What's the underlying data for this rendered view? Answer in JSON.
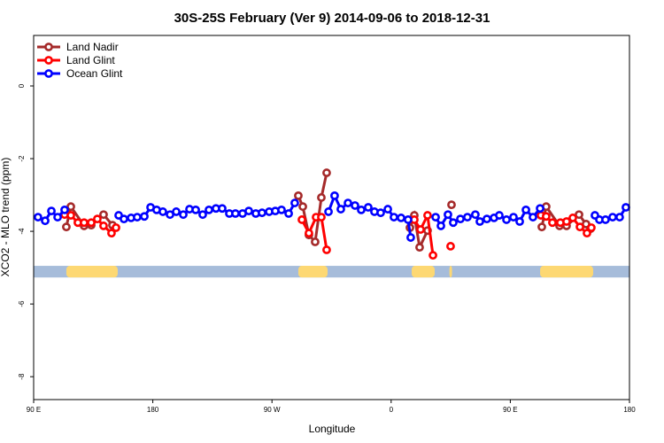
{
  "chart_data": {
    "type": "line",
    "title": "30S-25S February (Ver 9)   2014-09-06 to 2018-12-31",
    "xlabel": "Longitude",
    "ylabel": "XCO2 - MLO trend (ppm)",
    "xlim": [
      90,
      540
    ],
    "ylim": [
      -8.63,
      1.39
    ],
    "grid": false,
    "legend_position": "top-left",
    "x_ticks": [
      {
        "value": 90,
        "label": "90 E"
      },
      {
        "value": 180,
        "label": "180"
      },
      {
        "value": 270,
        "label": "90 W"
      },
      {
        "value": 360,
        "label": "0"
      },
      {
        "value": 450,
        "label": "90 E"
      },
      {
        "value": 540,
        "label": "180"
      }
    ],
    "y_ticks": [
      {
        "value": 0,
        "label": "0"
      },
      {
        "value": -2,
        "label": "-2"
      },
      {
        "value": -4,
        "label": "-4"
      },
      {
        "value": -6,
        "label": "-6"
      },
      {
        "value": -8,
        "label": "-8"
      }
    ],
    "land_ocean_band": {
      "y_range": [
        -4.95,
        -5.27
      ],
      "ocean_color": "#a6bcda",
      "land_color": "#fdd873",
      "land_segments": [
        [
          114.7,
          153.5
        ],
        [
          289.9,
          312.0
        ],
        [
          375.5,
          392.9
        ],
        [
          404.0,
          406.0
        ],
        [
          472.5,
          512.6
        ]
      ]
    },
    "series": [
      {
        "name": "Land Nadir",
        "color": "#a52a2a",
        "x": [
          114.7,
          118.1,
          128.1,
          133.5,
          142.8,
          149.5,
          null,
          289.9,
          293.3,
          297.9,
          302.6,
          307.3,
          311.3,
          null,
          374.2,
          377.5,
          381.5,
          387.5,
          null,
          405.6,
          null,
          473.8,
          477.1,
          487.2,
          492.5,
          501.9,
          507.2,
          510.6
        ],
        "y": [
          -3.88,
          -3.32,
          -3.85,
          -3.83,
          -3.54,
          -3.83,
          null,
          -3.02,
          -3.32,
          -4.1,
          -4.29,
          -3.07,
          -2.39,
          null,
          -3.9,
          -3.56,
          -4.44,
          -3.98,
          null,
          -3.27,
          null,
          -3.88,
          -3.32,
          -3.85,
          -3.85,
          -3.54,
          -3.8,
          -3.93
        ]
      },
      {
        "name": "Land Glint",
        "color": "#ff0000",
        "x": [
          113.4,
          118.1,
          123.4,
          128.1,
          133.5,
          138.1,
          142.8,
          148.8,
          152.2,
          null,
          292.6,
          297.9,
          303.3,
          307.3,
          311.3,
          null,
          377.5,
          382.2,
          387.5,
          391.6,
          null,
          404.9,
          null,
          473.1,
          477.1,
          481.8,
          487.8,
          492.5,
          497.2,
          502.6,
          507.9,
          511.2
        ],
        "y": [
          -3.54,
          -3.56,
          -3.76,
          -3.76,
          -3.76,
          -3.66,
          -3.85,
          -4.05,
          -3.9,
          null,
          -3.68,
          -4.05,
          -3.61,
          -3.61,
          -4.51,
          null,
          -3.68,
          -3.95,
          -3.56,
          -4.66,
          null,
          -4.41,
          null,
          -3.56,
          -3.59,
          -3.76,
          -3.76,
          -3.73,
          -3.63,
          -3.88,
          -4.05,
          -3.9
        ]
      },
      {
        "name": "Ocean Glint",
        "color": "#0000ff",
        "x": [
          93.3,
          98.7,
          103.4,
          108.1,
          113.4,
          null,
          154.2,
          158.2,
          163.6,
          168.2,
          173.6,
          178.3,
          182.9,
          187.6,
          193.0,
          197.7,
          203.0,
          207.7,
          212.4,
          217.7,
          222.4,
          227.7,
          232.4,
          237.8,
          242.4,
          247.8,
          252.5,
          257.8,
          262.5,
          267.9,
          272.5,
          277.2,
          282.6,
          287.2,
          null,
          312.7,
          317.3,
          322.0,
          327.4,
          332.7,
          337.4,
          342.7,
          347.4,
          352.1,
          357.5,
          362.1,
          367.5,
          372.8,
          374.8,
          null,
          393.6,
          397.6,
          402.9,
          406.9,
          412.3,
          417.6,
          423.6,
          427.0,
          432.3,
          437.7,
          441.7,
          447.1,
          452.4,
          457.1,
          461.8,
          467.1,
          472.5,
          null,
          513.9,
          517.3,
          521.9,
          527.3,
          532.6,
          537.3
        ],
        "y": [
          -3.61,
          -3.71,
          -3.44,
          -3.61,
          -3.41,
          null,
          -3.56,
          -3.66,
          -3.63,
          -3.61,
          -3.59,
          -3.34,
          -3.41,
          -3.46,
          -3.54,
          -3.46,
          -3.54,
          -3.39,
          -3.41,
          -3.54,
          -3.41,
          -3.37,
          -3.37,
          -3.51,
          -3.51,
          -3.51,
          -3.44,
          -3.51,
          -3.49,
          -3.46,
          -3.44,
          -3.41,
          -3.51,
          -3.22,
          null,
          -3.46,
          -3.02,
          -3.39,
          -3.22,
          -3.29,
          -3.41,
          -3.34,
          -3.46,
          -3.49,
          -3.39,
          -3.61,
          -3.63,
          -3.68,
          -4.17,
          null,
          -3.61,
          -3.85,
          -3.54,
          -3.76,
          -3.66,
          -3.61,
          -3.54,
          -3.73,
          -3.66,
          -3.63,
          -3.56,
          -3.68,
          -3.61,
          -3.73,
          -3.41,
          -3.61,
          -3.37,
          null,
          -3.56,
          -3.68,
          -3.68,
          -3.61,
          -3.61,
          -3.34
        ]
      }
    ]
  }
}
